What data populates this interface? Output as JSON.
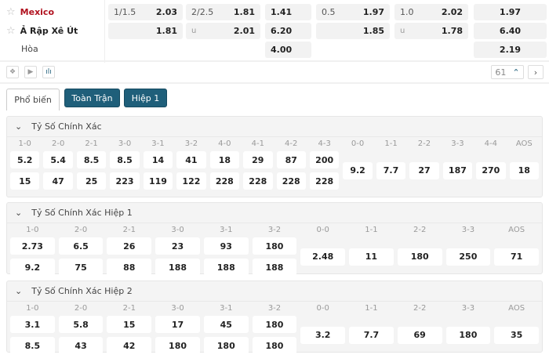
{
  "match": {
    "rows": [
      {
        "team": "Mexico",
        "boxes": [
          {
            "hc": "1/1.5",
            "odd": "2.03"
          },
          {
            "hc": "2/2.5",
            "odd": "1.81"
          },
          {
            "hc": "",
            "odd": "1.41"
          },
          {
            "hc": "0.5",
            "odd": "1.97"
          },
          {
            "hc": "1.0",
            "odd": "2.02"
          },
          {
            "hc": "",
            "odd": "1.97"
          }
        ]
      },
      {
        "team": "Ả Rập Xê Út",
        "boxes": [
          {
            "hc": "",
            "odd": "1.81"
          },
          {
            "hc": "u",
            "odd": "2.01"
          },
          {
            "hc": "",
            "odd": "6.20"
          },
          {
            "hc": "",
            "odd": "1.85"
          },
          {
            "hc": "u",
            "odd": "1.78"
          },
          {
            "hc": "",
            "odd": "6.40"
          }
        ]
      },
      {
        "team": "Hòa",
        "boxes": [
          null,
          null,
          {
            "hc": "",
            "odd": "4.00"
          },
          null,
          null,
          {
            "hc": "",
            "odd": "2.19"
          }
        ]
      }
    ]
  },
  "toolbar": {
    "count": "61"
  },
  "tabs": [
    "Phổ biến",
    "Toàn Trận",
    "Hiệp 1"
  ],
  "sections": [
    {
      "title": "Tỷ Số Chính Xác",
      "labels": [
        "1-0",
        "2-0",
        "2-1",
        "3-0",
        "3-1",
        "3-2",
        "4-0",
        "4-1",
        "4-2",
        "4-3",
        "0-0",
        "1-1",
        "2-2",
        "3-3",
        "4-4",
        "AOS"
      ],
      "row1": [
        "5.2",
        "5.4",
        "8.5",
        "8.5",
        "14",
        "41",
        "18",
        "29",
        "87",
        "200"
      ],
      "row2": [
        "15",
        "47",
        "25",
        "223",
        "119",
        "122",
        "228",
        "228",
        "228",
        "228"
      ],
      "draws": [
        "9.2",
        "7.7",
        "27",
        "187",
        "270",
        "18"
      ]
    },
    {
      "title": "Tỷ Số Chính Xác Hiệp 1",
      "labels": [
        "1-0",
        "2-0",
        "2-1",
        "3-0",
        "3-1",
        "3-2",
        "0-0",
        "1-1",
        "2-2",
        "3-3",
        "AOS"
      ],
      "row1": [
        "2.73",
        "6.5",
        "26",
        "23",
        "93",
        "180"
      ],
      "row2": [
        "9.2",
        "75",
        "88",
        "188",
        "188",
        "188"
      ],
      "draws": [
        "2.48",
        "11",
        "180",
        "250",
        "71"
      ]
    },
    {
      "title": "Tỷ Số Chính Xác Hiệp 2",
      "labels": [
        "1-0",
        "2-0",
        "2-1",
        "3-0",
        "3-1",
        "3-2",
        "0-0",
        "1-1",
        "2-2",
        "3-3",
        "AOS"
      ],
      "row1": [
        "3.1",
        "5.8",
        "15",
        "17",
        "45",
        "180"
      ],
      "row2": [
        "8.5",
        "43",
        "42",
        "180",
        "180",
        "180"
      ],
      "draws": [
        "3.2",
        "7.7",
        "69",
        "180",
        "35"
      ]
    }
  ]
}
